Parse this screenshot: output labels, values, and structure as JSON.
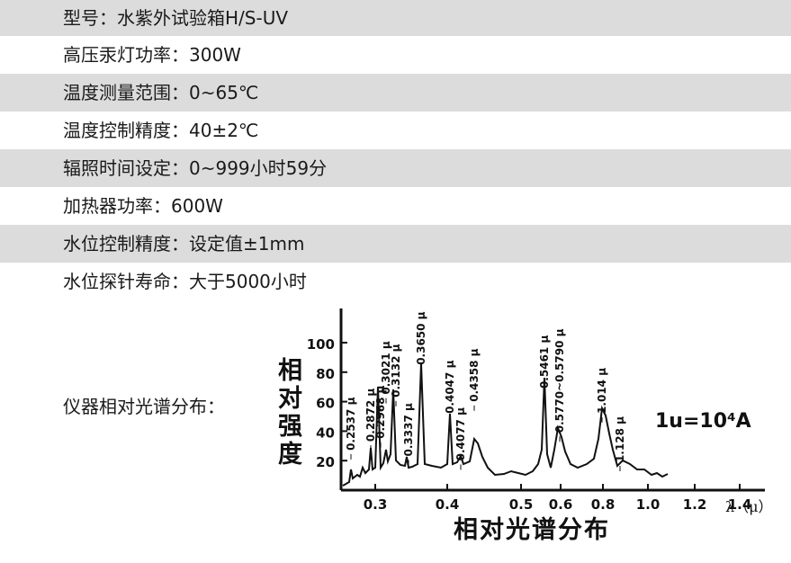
{
  "specs": [
    {
      "label": "型号：",
      "value": "水紫外试验箱H/S-UV"
    },
    {
      "label": "高压汞灯功率：",
      "value": "300W"
    },
    {
      "label": "温度测量范围：",
      "value": "0~65℃"
    },
    {
      "label": "温度控制精度：",
      "value": "40±2℃"
    },
    {
      "label": "辐照时间设定：",
      "value": "0~999小时59分"
    },
    {
      "label": "加热器功率：",
      "value": "600W"
    },
    {
      "label": "水位控制精度：",
      "value": "设定值±1mm"
    },
    {
      "label": "水位探针寿命：",
      "value": "大于5000小时"
    }
  ],
  "spectrum": {
    "label": "仪器相对光谱分布：",
    "chart_data": {
      "type": "line",
      "title": "相对光谱分布",
      "ylabel": "相对强度",
      "xlabel": "λ（μ）",
      "unit_note": "1u=10⁴A",
      "x_ticks": [
        "0.3",
        "0.4",
        "0.5",
        "0.6",
        "0.8",
        "1.0",
        "1.2",
        "1.4"
      ],
      "y_ticks": [
        "20",
        "40",
        "60",
        "80",
        "100"
      ],
      "ylim": [
        0,
        110
      ],
      "peaks": [
        {
          "label": "0.2537 μ",
          "value": 22
        },
        {
          "label": "0.2872 μ",
          "value": 28
        },
        {
          "label": "0.2968 μ",
          "value": 30
        },
        {
          "label": "0.3021 μ",
          "value": 60
        },
        {
          "label": "0.3132 μ",
          "value": 58
        },
        {
          "label": "0.3337 μ",
          "value": 18
        },
        {
          "label": "0.3650 μ",
          "value": 80
        },
        {
          "label": "0.4047 μ",
          "value": 47
        },
        {
          "label": "0.4077 μ",
          "value": 15
        },
        {
          "label": "0.4358 μ",
          "value": 55
        },
        {
          "label": "0.5461 μ",
          "value": 64
        },
        {
          "label": "0.5770~0.5790 μ",
          "value": 34
        },
        {
          "label": "1.014 μ",
          "value": 47
        },
        {
          "label": "1.128 μ",
          "value": 14
        }
      ]
    }
  }
}
